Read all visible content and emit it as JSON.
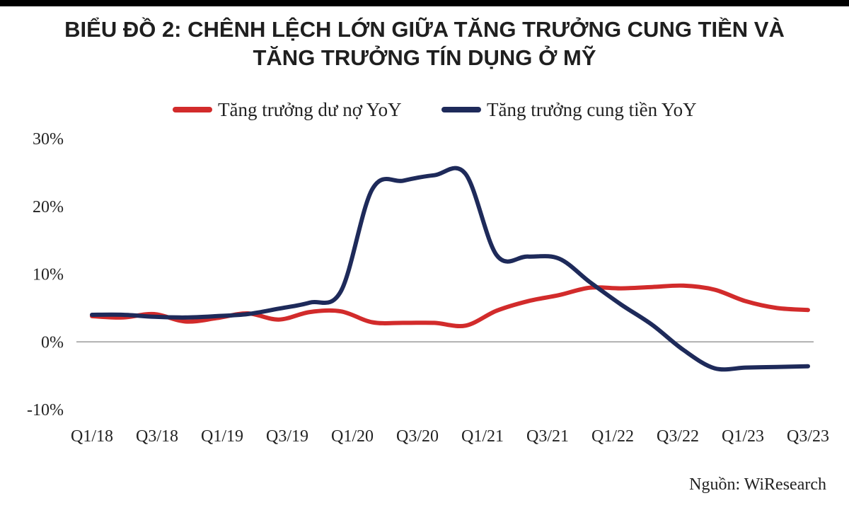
{
  "title_lines": [
    "BIỂU ĐỒ 2: CHÊNH LỆCH LỚN GIỮA TĂNG TRƯỞNG CUNG TIỀN VÀ",
    "TĂNG TRƯỞNG TÍN DỤNG Ở MỸ"
  ],
  "source": "Nguồn: WiResearch",
  "colors": {
    "credit": "#d22b2b",
    "money_supply": "#1e2a5a",
    "zero_line": "#9a9a9a"
  },
  "chart_data": {
    "type": "line",
    "x_tick_labels": [
      "Q1/18",
      "Q3/18",
      "Q1/19",
      "Q3/19",
      "Q1/20",
      "Q3/20",
      "Q1/21",
      "Q3/21",
      "Q1/22",
      "Q3/22",
      "Q1/23",
      "Q3/23"
    ],
    "y_tick_labels": [
      "30%",
      "20%",
      "10%",
      "0%",
      "-10%"
    ],
    "ylim": [
      -10,
      30
    ],
    "yticks": [
      30,
      20,
      10,
      0,
      -10
    ],
    "x_range": [
      0,
      23
    ],
    "legend_position": "top",
    "grid": false,
    "series": [
      {
        "name": "Tăng trưởng dư nợ YoY",
        "color_key": "credit",
        "points": [
          [
            0,
            3.8
          ],
          [
            1,
            3.6
          ],
          [
            2,
            4.1
          ],
          [
            3,
            3.0
          ],
          [
            4,
            3.5
          ],
          [
            5,
            4.2
          ],
          [
            6,
            3.3
          ],
          [
            7,
            4.4
          ],
          [
            8,
            4.5
          ],
          [
            9,
            2.9
          ],
          [
            10,
            2.8
          ],
          [
            11,
            2.8
          ],
          [
            12,
            2.4
          ],
          [
            13,
            4.6
          ],
          [
            14,
            6.0
          ],
          [
            15,
            6.9
          ],
          [
            16,
            8.0
          ],
          [
            17,
            7.9
          ],
          [
            18,
            8.1
          ],
          [
            19,
            8.3
          ],
          [
            20,
            7.7
          ],
          [
            21,
            6.0
          ],
          [
            22,
            5.0
          ],
          [
            23,
            4.7
          ]
        ]
      },
      {
        "name": "Tăng trưởng cung tiền YoY",
        "color_key": "money_supply",
        "points": [
          [
            0,
            4.0
          ],
          [
            1,
            4.0
          ],
          [
            2,
            3.7
          ],
          [
            3,
            3.6
          ],
          [
            4,
            3.8
          ],
          [
            5,
            4.1
          ],
          [
            6,
            4.9
          ],
          [
            7,
            5.8
          ],
          [
            8,
            7.5
          ],
          [
            9,
            22.5
          ],
          [
            10,
            23.8
          ],
          [
            11,
            24.6
          ],
          [
            12,
            24.8
          ],
          [
            13,
            12.8
          ],
          [
            14,
            12.6
          ],
          [
            15,
            12.3
          ],
          [
            16,
            8.8
          ],
          [
            17,
            5.5
          ],
          [
            18,
            2.5
          ],
          [
            19,
            -1.2
          ],
          [
            20,
            -3.9
          ],
          [
            21,
            -3.8
          ],
          [
            22,
            -3.7
          ],
          [
            23,
            -3.6
          ]
        ]
      }
    ]
  }
}
